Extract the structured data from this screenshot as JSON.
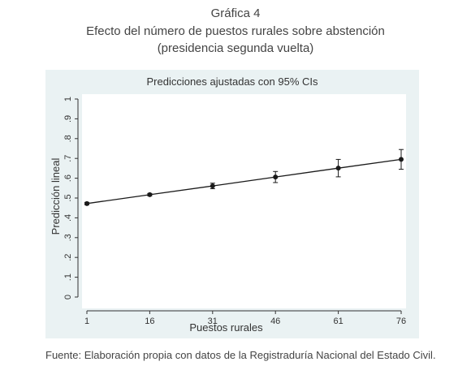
{
  "figure": {
    "label": "Gráfica 4",
    "title": "Efecto del número de puestos rurales sobre abstención",
    "subtitle": "(presidencia segunda vuelta)",
    "source": "Fuente: Elaboración propia con datos de la Registraduría Nacional del Estado Civil."
  },
  "colors": {
    "panel_background": "#eaf2f3",
    "plot_background": "#ffffff",
    "line": "#1a1a1a"
  },
  "chart_data": {
    "type": "line",
    "title": "Predicciones ajustadas con 95% CIs",
    "xlabel": "Puestos rurales",
    "ylabel": "Predicción lineal",
    "x": [
      1,
      16,
      31,
      46,
      61,
      76
    ],
    "x_tick_labels": [
      "1",
      "16",
      "31",
      "46",
      "61",
      "76"
    ],
    "y_tick_values": [
      0,
      0.1,
      0.2,
      0.3,
      0.4,
      0.5,
      0.6,
      0.7,
      0.8,
      0.9,
      1
    ],
    "y_tick_labels": [
      "0",
      ".1",
      ".2",
      ".3",
      ".4",
      ".5",
      ".6",
      ".7",
      ".8",
      ".9",
      "1"
    ],
    "ylim": [
      0,
      1
    ],
    "xlim": [
      1,
      76
    ],
    "grid": false,
    "series": [
      {
        "values": [
          0.472,
          0.517,
          0.561,
          0.606,
          0.651,
          0.695
        ],
        "ci_lower": [
          0.466,
          0.511,
          0.547,
          0.578,
          0.607,
          0.645
        ],
        "ci_upper": [
          0.478,
          0.523,
          0.575,
          0.634,
          0.695,
          0.745
        ]
      }
    ]
  }
}
